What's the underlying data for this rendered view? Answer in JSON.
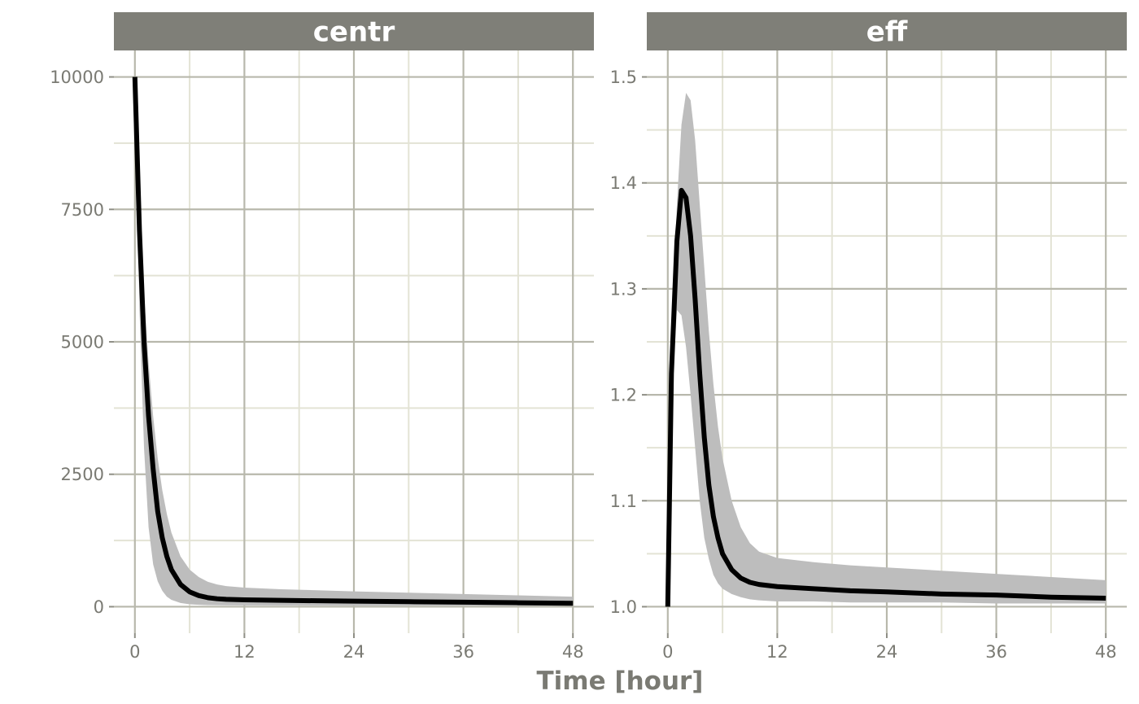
{
  "chart_data": {
    "type": "line",
    "xlabel": "Time [hour]",
    "x_ticks": [
      0,
      12,
      24,
      36,
      48
    ],
    "grid": true,
    "ribbon_color": "#bdbdbd",
    "line_color": "#000000",
    "strip_color": "#7f7f78",
    "panels": [
      {
        "id": "centr",
        "strip_label": "centr",
        "xlim": [
          -2.3,
          50.3
        ],
        "ylim": [
          -500,
          10500
        ],
        "y_ticks": [
          0,
          2500,
          5000,
          7500,
          10000
        ],
        "y_tick_labels": [
          "0",
          "2500",
          "5000",
          "7500",
          "10000"
        ],
        "median": {
          "x": [
            0,
            0.5,
            1,
            1.5,
            2,
            2.5,
            3,
            3.5,
            4,
            5,
            6,
            7,
            8,
            9,
            10,
            12,
            16,
            20,
            24,
            30,
            36,
            42,
            48
          ],
          "y": [
            10000,
            7100,
            5000,
            3600,
            2600,
            1800,
            1300,
            950,
            700,
            420,
            280,
            210,
            170,
            150,
            140,
            130,
            120,
            112,
            105,
            95,
            85,
            75,
            65
          ]
        },
        "band": {
          "x": [
            0,
            0.5,
            1,
            1.5,
            2,
            2.5,
            3,
            3.5,
            4,
            5,
            6,
            7,
            8,
            9,
            10,
            12,
            16,
            20,
            24,
            30,
            36,
            42,
            48
          ],
          "upper": [
            10000,
            8000,
            5900,
            4600,
            3600,
            2800,
            2200,
            1750,
            1400,
            950,
            700,
            560,
            470,
            420,
            390,
            360,
            330,
            310,
            290,
            265,
            240,
            215,
            190
          ],
          "lower": [
            10000,
            5600,
            3000,
            1500,
            800,
            480,
            300,
            190,
            130,
            70,
            45,
            35,
            30,
            28,
            26,
            24,
            22,
            20,
            19,
            18,
            17,
            16,
            15
          ]
        }
      },
      {
        "id": "eff",
        "strip_label": "eff",
        "xlim": [
          -2.3,
          50.3
        ],
        "ylim": [
          0.975,
          1.525
        ],
        "y_ticks": [
          1.0,
          1.1,
          1.2,
          1.3,
          1.4,
          1.5
        ],
        "y_tick_labels": [
          "1.0",
          "1.1",
          "1.2",
          "1.3",
          "1.4",
          "1.5"
        ],
        "median": {
          "x": [
            0,
            0.4,
            1,
            1.5,
            2,
            2.5,
            3,
            3.5,
            4,
            4.5,
            5,
            5.5,
            6,
            7,
            8,
            9,
            10,
            12,
            16,
            20,
            24,
            30,
            36,
            42,
            48
          ],
          "y": [
            1.0,
            1.22,
            1.345,
            1.393,
            1.386,
            1.35,
            1.29,
            1.22,
            1.16,
            1.115,
            1.085,
            1.065,
            1.05,
            1.035,
            1.027,
            1.023,
            1.021,
            1.019,
            1.017,
            1.015,
            1.014,
            1.012,
            1.011,
            1.009,
            1.008
          ]
        },
        "band": {
          "x": [
            0,
            0.4,
            1,
            1.5,
            2,
            2.5,
            3,
            3.5,
            4,
            4.5,
            5,
            5.5,
            6,
            7,
            8,
            9,
            10,
            12,
            16,
            20,
            24,
            30,
            36,
            42,
            48
          ],
          "upper": [
            1.0,
            1.25,
            1.38,
            1.455,
            1.485,
            1.478,
            1.44,
            1.38,
            1.32,
            1.26,
            1.21,
            1.17,
            1.14,
            1.1,
            1.075,
            1.06,
            1.052,
            1.046,
            1.042,
            1.039,
            1.037,
            1.034,
            1.031,
            1.028,
            1.025
          ],
          "lower": [
            1.0,
            1.19,
            1.28,
            1.275,
            1.245,
            1.2,
            1.15,
            1.1,
            1.065,
            1.045,
            1.03,
            1.022,
            1.017,
            1.012,
            1.009,
            1.007,
            1.006,
            1.005,
            1.005,
            1.004,
            1.004,
            1.004,
            1.003,
            1.003,
            1.003
          ]
        }
      }
    ]
  }
}
